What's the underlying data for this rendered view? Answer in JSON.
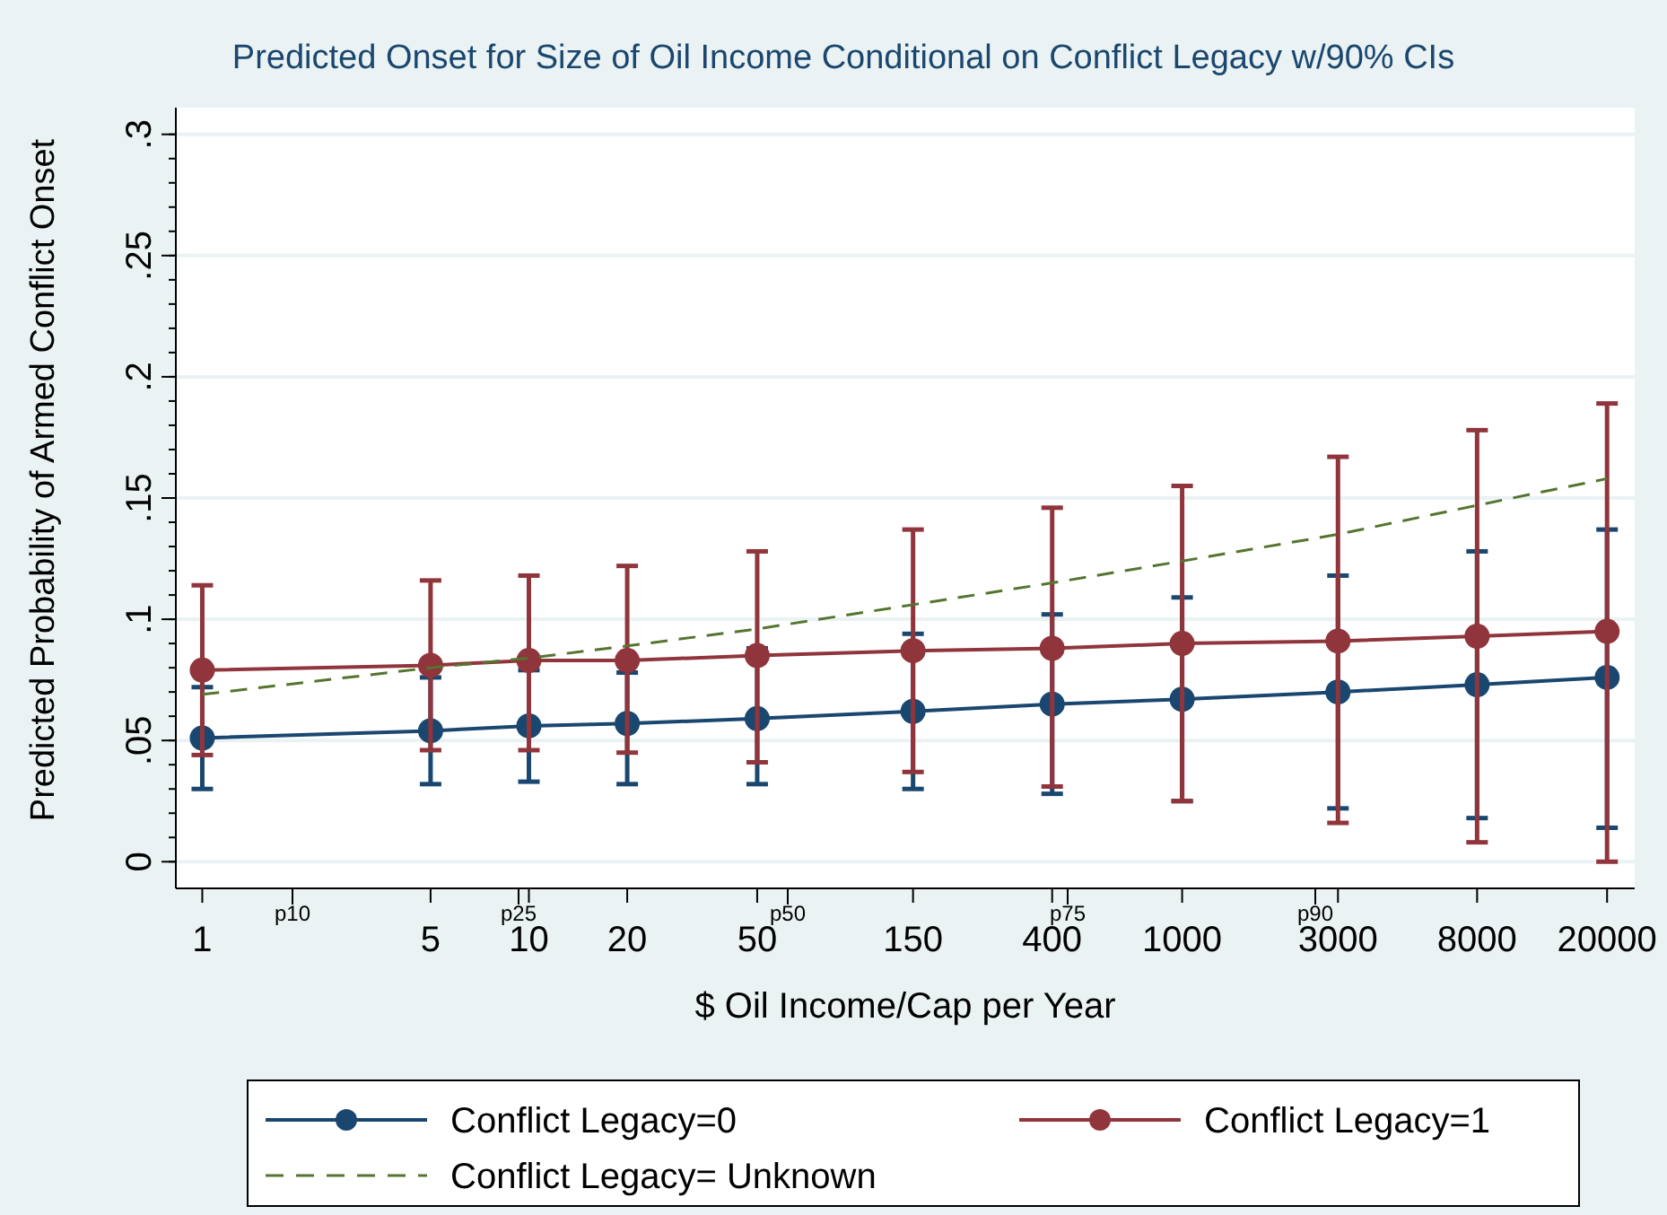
{
  "chart_data": {
    "type": "line",
    "title": "Predicted Onset for Size of Oil Income Conditional on Conflict Legacy w/90% CIs",
    "xlabel": "$ Oil Income/Cap per Year",
    "ylabel": "Predicted Probability of Armed Conflict Onset",
    "x": [
      1,
      5,
      10,
      20,
      50,
      150,
      400,
      1000,
      3000,
      8000,
      20000
    ],
    "log": "x",
    "xlim": [
      0.83,
      24300
    ],
    "xticks": [
      1,
      5,
      10,
      20,
      50,
      150,
      400,
      1000,
      3000,
      8000,
      20000
    ],
    "ylim": [
      -0.011,
      0.311
    ],
    "yticks": [
      {
        "value": 0,
        "label": "0"
      },
      {
        "value": 0.05,
        "label": ".05"
      },
      {
        "value": 0.1,
        "label": ".1"
      },
      {
        "value": 0.15,
        "label": ".15"
      },
      {
        "value": 0.2,
        "label": ".2"
      },
      {
        "value": 0.25,
        "label": ".25"
      },
      {
        "value": 0.3,
        "label": ".3"
      }
    ],
    "grid": "y",
    "legend": "bottom",
    "annotations": [
      "p10",
      "p25",
      "p50",
      "p75",
      "p90"
    ],
    "series": [
      {
        "name": "Conflict Legacy=0",
        "color": "#1a476f",
        "marker": "circle",
        "line_style": "solid",
        "values": [
          0.051,
          0.054,
          0.056,
          0.057,
          0.059,
          0.062,
          0.065,
          0.067,
          0.07,
          0.073,
          0.076
        ],
        "errors": [
          [
            0.03,
            0.072
          ],
          [
            0.032,
            0.076
          ],
          [
            0.033,
            0.079
          ],
          [
            0.032,
            0.078
          ],
          [
            0.032,
            0.088
          ],
          [
            0.03,
            0.094
          ],
          [
            0.028,
            0.102
          ],
          [
            0.025,
            0.109
          ],
          [
            0.022,
            0.118
          ],
          [
            0.018,
            0.128
          ],
          [
            0.014,
            0.137
          ]
        ]
      },
      {
        "name": "Conflict Legacy=1",
        "color": "#90353b",
        "marker": "circle",
        "line_style": "solid",
        "values": [
          0.079,
          0.081,
          0.083,
          0.083,
          0.085,
          0.087,
          0.088,
          0.09,
          0.091,
          0.093,
          0.095
        ],
        "errors": [
          [
            0.044,
            0.114
          ],
          [
            0.046,
            0.116
          ],
          [
            0.046,
            0.118
          ],
          [
            0.045,
            0.122
          ],
          [
            0.041,
            0.128
          ],
          [
            0.037,
            0.137
          ],
          [
            0.031,
            0.146
          ],
          [
            0.025,
            0.155
          ],
          [
            0.016,
            0.167
          ],
          [
            0.008,
            0.178
          ],
          [
            0.0,
            0.189
          ]
        ]
      },
      {
        "name": "Conflict Legacy= Unknown",
        "color": "#55752f",
        "marker": "none",
        "line_style": "dashed",
        "values": [
          0.069,
          0.08,
          0.084,
          0.089,
          0.096,
          0.106,
          0.115,
          0.124,
          0.135,
          0.147,
          0.158
        ]
      }
    ]
  }
}
